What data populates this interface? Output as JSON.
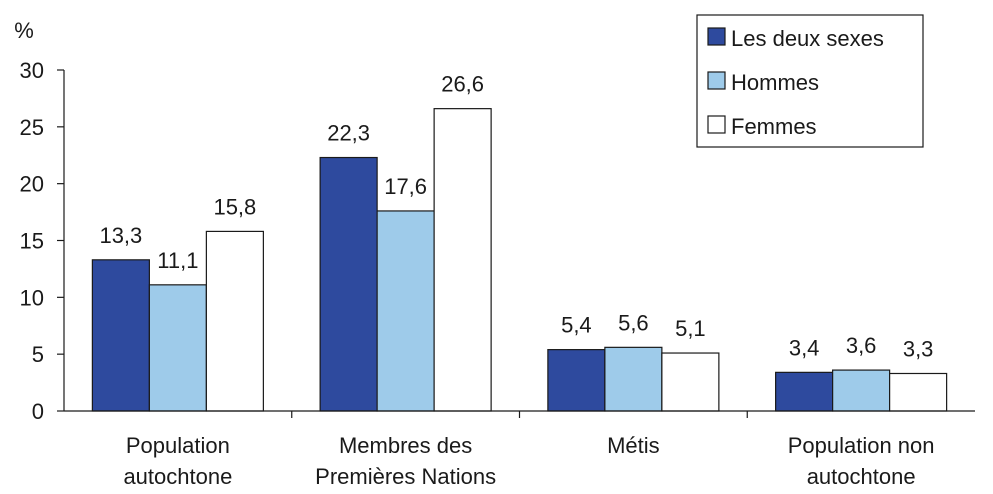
{
  "chart_data": {
    "type": "bar",
    "unit_label": "%",
    "ylim": [
      0,
      30
    ],
    "yticks": [
      0,
      5,
      10,
      15,
      20,
      25,
      30
    ],
    "grid": false,
    "legend_position": "top-right",
    "categories": [
      [
        "Population",
        "autochtone"
      ],
      [
        "Membres des",
        "Premières Nations"
      ],
      [
        "Métis"
      ],
      [
        "Population non",
        "autochtone"
      ]
    ],
    "series": [
      {
        "name": "Les deux sexes",
        "color": "#2e4a9e",
        "values": [
          13.3,
          22.3,
          5.4,
          3.4
        ],
        "labels": [
          "13,3",
          "22,3",
          "5,4",
          "3,4"
        ]
      },
      {
        "name": "Hommes",
        "color": "#9ecbea",
        "values": [
          11.1,
          17.6,
          5.6,
          3.6
        ],
        "labels": [
          "11,1",
          "17,6",
          "5,6",
          "3,6"
        ]
      },
      {
        "name": "Femmes",
        "color": "#ffffff",
        "values": [
          15.8,
          26.6,
          5.1,
          3.3
        ],
        "labels": [
          "15,8",
          "26,6",
          "5,1",
          "3,3"
        ]
      }
    ]
  }
}
